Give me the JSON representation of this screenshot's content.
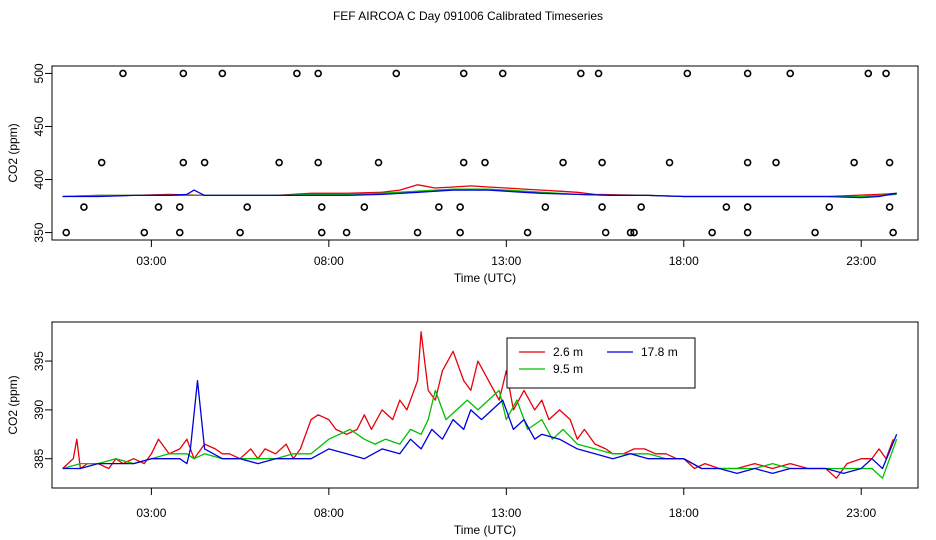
{
  "title": "FEF AIRCOA C  Day 091006  Calibrated Timeseries",
  "colors": {
    "red": "#e8000b",
    "green": "#00c000",
    "blue": "#0000e0",
    "axis": "#000000"
  },
  "chart_data": [
    {
      "type": "scatter+line",
      "panel": "top",
      "xlabel": "Time (UTC)",
      "ylabel": "CO2 (ppm)",
      "xlim": [
        0.2,
        24.6
      ],
      "ylim": [
        343,
        507
      ],
      "xticks": [
        3,
        8,
        13,
        18,
        23
      ],
      "xtick_labels": [
        "03:00",
        "08:00",
        "13:00",
        "18:00",
        "23:00"
      ],
      "yticks": [
        350,
        400,
        450,
        500
      ],
      "ytick_labels": [
        "350",
        "400",
        "450",
        "500"
      ],
      "points": [
        {
          "x": 2.2,
          "y": 500
        },
        {
          "x": 3.9,
          "y": 500
        },
        {
          "x": 5.0,
          "y": 500
        },
        {
          "x": 7.1,
          "y": 500
        },
        {
          "x": 7.7,
          "y": 500
        },
        {
          "x": 9.9,
          "y": 500
        },
        {
          "x": 11.8,
          "y": 500
        },
        {
          "x": 12.9,
          "y": 500
        },
        {
          "x": 15.1,
          "y": 500
        },
        {
          "x": 15.6,
          "y": 500
        },
        {
          "x": 18.1,
          "y": 500
        },
        {
          "x": 19.8,
          "y": 500
        },
        {
          "x": 21.0,
          "y": 500
        },
        {
          "x": 23.2,
          "y": 500
        },
        {
          "x": 23.7,
          "y": 500
        },
        {
          "x": 1.6,
          "y": 416
        },
        {
          "x": 3.9,
          "y": 416
        },
        {
          "x": 4.5,
          "y": 416
        },
        {
          "x": 6.6,
          "y": 416
        },
        {
          "x": 7.7,
          "y": 416
        },
        {
          "x": 9.4,
          "y": 416
        },
        {
          "x": 11.8,
          "y": 416
        },
        {
          "x": 12.4,
          "y": 416
        },
        {
          "x": 14.6,
          "y": 416
        },
        {
          "x": 15.7,
          "y": 416
        },
        {
          "x": 17.6,
          "y": 416
        },
        {
          "x": 19.8,
          "y": 416
        },
        {
          "x": 20.6,
          "y": 416
        },
        {
          "x": 22.8,
          "y": 416
        },
        {
          "x": 23.8,
          "y": 416
        },
        {
          "x": 1.1,
          "y": 374
        },
        {
          "x": 3.2,
          "y": 374
        },
        {
          "x": 3.8,
          "y": 374
        },
        {
          "x": 5.7,
          "y": 374
        },
        {
          "x": 7.8,
          "y": 374
        },
        {
          "x": 9.0,
          "y": 374
        },
        {
          "x": 11.1,
          "y": 374
        },
        {
          "x": 11.7,
          "y": 374
        },
        {
          "x": 14.1,
          "y": 374
        },
        {
          "x": 15.7,
          "y": 374
        },
        {
          "x": 16.8,
          "y": 374
        },
        {
          "x": 19.2,
          "y": 374
        },
        {
          "x": 19.8,
          "y": 374
        },
        {
          "x": 22.1,
          "y": 374
        },
        {
          "x": 23.8,
          "y": 374
        },
        {
          "x": 0.6,
          "y": 350
        },
        {
          "x": 2.8,
          "y": 350
        },
        {
          "x": 3.8,
          "y": 350
        },
        {
          "x": 5.5,
          "y": 350
        },
        {
          "x": 7.8,
          "y": 350
        },
        {
          "x": 8.5,
          "y": 350
        },
        {
          "x": 10.5,
          "y": 350
        },
        {
          "x": 11.7,
          "y": 350
        },
        {
          "x": 13.6,
          "y": 350
        },
        {
          "x": 15.8,
          "y": 350
        },
        {
          "x": 16.5,
          "y": 350
        },
        {
          "x": 16.6,
          "y": 350
        },
        {
          "x": 18.8,
          "y": 350
        },
        {
          "x": 19.8,
          "y": 350
        },
        {
          "x": 21.7,
          "y": 350
        },
        {
          "x": 23.9,
          "y": 350
        }
      ],
      "series": [
        {
          "name": "2.6 m",
          "color": "#e8000b",
          "x": [
            0.5,
            1.5,
            2.5,
            3.5,
            4.5,
            5.5,
            6.5,
            7.5,
            8.5,
            9.5,
            10.0,
            10.5,
            11.0,
            11.5,
            12.0,
            12.5,
            13.0,
            13.5,
            14.0,
            14.5,
            15.0,
            15.5,
            17.0,
            18.0,
            19.0,
            20.0,
            21.0,
            22.0,
            22.8,
            23.5,
            24.0
          ],
          "y": [
            384,
            385,
            385,
            386,
            385,
            385,
            385,
            387,
            387,
            388,
            390,
            395,
            392,
            393,
            394,
            393,
            392,
            391,
            390,
            389,
            388,
            386,
            385,
            384,
            384,
            384,
            384,
            384,
            385,
            386,
            387
          ]
        },
        {
          "name": "9.5 m",
          "color": "#00c000",
          "x": [
            0.5,
            1.5,
            2.5,
            3.5,
            4.5,
            5.5,
            6.5,
            7.5,
            8.5,
            9.5,
            10.5,
            11.5,
            12.5,
            13.0,
            13.5,
            14.0,
            15.0,
            16.0,
            17.0,
            18.0,
            19.0,
            20.0,
            21.0,
            22.0,
            23.0,
            24.0
          ],
          "y": [
            384,
            385,
            385,
            385,
            385,
            385,
            385,
            386,
            386,
            387,
            389,
            391,
            391,
            390,
            389,
            388,
            386,
            385,
            385,
            384,
            384,
            384,
            384,
            384,
            384,
            386
          ]
        },
        {
          "name": "17.8 m",
          "color": "#0000e0",
          "x": [
            0.5,
            1.5,
            2.5,
            3.5,
            4.0,
            4.2,
            4.5,
            5.5,
            6.5,
            7.5,
            8.5,
            9.5,
            10.5,
            11.5,
            12.5,
            13.0,
            13.5,
            14.0,
            15.0,
            16.0,
            17.0,
            18.0,
            19.0,
            20.0,
            21.0,
            22.0,
            23.0,
            23.5,
            24.0
          ],
          "y": [
            384,
            384,
            385,
            385,
            386,
            390,
            385,
            385,
            385,
            385,
            385,
            386,
            388,
            390,
            390,
            389,
            388,
            387,
            386,
            385,
            385,
            384,
            384,
            384,
            384,
            384,
            383,
            384,
            387
          ]
        }
      ]
    },
    {
      "type": "line",
      "panel": "bottom",
      "xlabel": "Time (UTC)",
      "ylabel": "CO2 (ppm)",
      "xlim": [
        0.2,
        24.6
      ],
      "ylim": [
        382,
        399
      ],
      "xticks": [
        3,
        8,
        13,
        18,
        23
      ],
      "xtick_labels": [
        "03:00",
        "08:00",
        "13:00",
        "18:00",
        "23:00"
      ],
      "yticks": [
        385,
        390,
        395
      ],
      "ytick_labels": [
        "385",
        "390",
        "395"
      ],
      "legend": {
        "position": "top-right",
        "entries": [
          "2.6 m",
          "9.5 m",
          "17.8 m"
        ]
      },
      "series": [
        {
          "name": "2.6 m",
          "color": "#e8000b",
          "x": [
            0.5,
            0.8,
            0.9,
            1.0,
            1.2,
            1.5,
            1.8,
            2.0,
            2.2,
            2.5,
            2.8,
            3.0,
            3.2,
            3.5,
            3.8,
            4.0,
            4.2,
            4.5,
            4.8,
            5.0,
            5.2,
            5.5,
            5.8,
            6.0,
            6.2,
            6.5,
            6.8,
            7.0,
            7.2,
            7.5,
            7.7,
            8.0,
            8.2,
            8.5,
            8.8,
            9.0,
            9.2,
            9.5,
            9.8,
            10.0,
            10.2,
            10.5,
            10.6,
            10.8,
            11.0,
            11.2,
            11.5,
            11.8,
            12.0,
            12.2,
            12.5,
            12.8,
            13.0,
            13.2,
            13.5,
            13.8,
            14.0,
            14.2,
            14.5,
            14.8,
            15.0,
            15.2,
            15.5,
            15.8,
            16.0,
            16.3,
            16.6,
            16.9,
            17.2,
            17.5,
            17.8,
            18.0,
            18.3,
            18.6,
            19.0,
            19.5,
            20.0,
            20.5,
            21.0,
            21.5,
            22.0,
            22.3,
            22.6,
            23.0,
            23.3,
            23.5,
            23.7,
            23.9
          ],
          "y": [
            384,
            385,
            387,
            384,
            384.5,
            384.5,
            384,
            385,
            384.5,
            385,
            384.5,
            385.5,
            387,
            385.5,
            386,
            387,
            385,
            386.5,
            386,
            385.5,
            385.5,
            385,
            386,
            385,
            386,
            385.5,
            386.5,
            385,
            386,
            389,
            389.5,
            389,
            388,
            387.5,
            388,
            389.5,
            388,
            390,
            389,
            391,
            390,
            393,
            398,
            392,
            391,
            394,
            396,
            393,
            392,
            395,
            393,
            391,
            394,
            390,
            392,
            390,
            391,
            389,
            390,
            389,
            387,
            388,
            386.5,
            386,
            385.5,
            385.5,
            386,
            386,
            385.5,
            385.5,
            385,
            385,
            384,
            384.5,
            384,
            384,
            384.5,
            384,
            384.5,
            384,
            384,
            383,
            384.5,
            385,
            385,
            386,
            385,
            387
          ]
        },
        {
          "name": "9.5 m",
          "color": "#00c000",
          "x": [
            0.5,
            1.0,
            1.5,
            2.0,
            2.5,
            3.0,
            3.5,
            4.0,
            4.2,
            4.5,
            5.0,
            5.5,
            6.0,
            6.5,
            7.0,
            7.5,
            8.0,
            8.3,
            8.6,
            9.0,
            9.3,
            9.6,
            10.0,
            10.3,
            10.6,
            10.8,
            11.0,
            11.3,
            11.6,
            11.9,
            12.2,
            12.5,
            12.8,
            13.0,
            13.3,
            13.6,
            14.0,
            14.3,
            14.6,
            15.0,
            15.5,
            16.0,
            16.5,
            17.0,
            17.5,
            18.0,
            18.5,
            19.0,
            19.5,
            20.0,
            20.5,
            21.0,
            21.5,
            22.0,
            22.5,
            23.0,
            23.3,
            23.6,
            24.0
          ],
          "y": [
            384,
            384.5,
            384.5,
            385,
            384.5,
            385,
            385.5,
            385.5,
            385,
            385.5,
            385,
            385,
            385,
            385,
            385.5,
            385.5,
            387,
            387.5,
            388,
            387,
            386.5,
            387,
            386.5,
            388,
            387.5,
            389,
            392,
            389,
            390,
            391,
            390,
            391,
            392,
            389,
            391,
            388,
            389,
            387,
            388,
            386.5,
            386,
            385.5,
            385.5,
            385.5,
            385,
            385,
            384,
            384,
            384,
            384,
            384.5,
            384,
            384,
            384,
            384,
            384,
            384,
            383,
            387
          ]
        },
        {
          "name": "17.8 m",
          "color": "#0000e0",
          "x": [
            0.5,
            1.0,
            1.5,
            2.0,
            2.5,
            3.0,
            3.5,
            3.8,
            4.0,
            4.1,
            4.3,
            4.5,
            5.0,
            5.5,
            6.0,
            6.5,
            7.0,
            7.5,
            8.0,
            8.5,
            9.0,
            9.5,
            10.0,
            10.3,
            10.6,
            10.9,
            11.2,
            11.5,
            11.8,
            12.0,
            12.3,
            12.6,
            12.9,
            13.2,
            13.5,
            13.8,
            14.0,
            14.5,
            15.0,
            15.5,
            16.0,
            16.5,
            17.0,
            17.5,
            18.0,
            18.5,
            19.0,
            19.5,
            20.0,
            20.5,
            21.0,
            21.5,
            22.0,
            22.5,
            23.0,
            23.3,
            23.6,
            24.0
          ],
          "y": [
            384,
            384,
            384.5,
            384.5,
            384.5,
            385,
            385,
            385,
            384.5,
            386,
            393,
            386,
            385,
            385,
            384.5,
            385,
            385,
            385,
            386,
            385.5,
            385,
            386,
            385.5,
            387,
            386,
            388,
            387,
            389,
            388,
            390,
            389,
            390,
            391,
            388,
            389,
            387,
            387.5,
            387,
            386,
            385.5,
            385,
            385.5,
            385,
            385,
            385,
            384,
            384,
            383.5,
            384,
            383.5,
            384,
            384,
            384,
            383.5,
            384,
            385,
            384,
            387.5
          ]
        }
      ]
    }
  ]
}
